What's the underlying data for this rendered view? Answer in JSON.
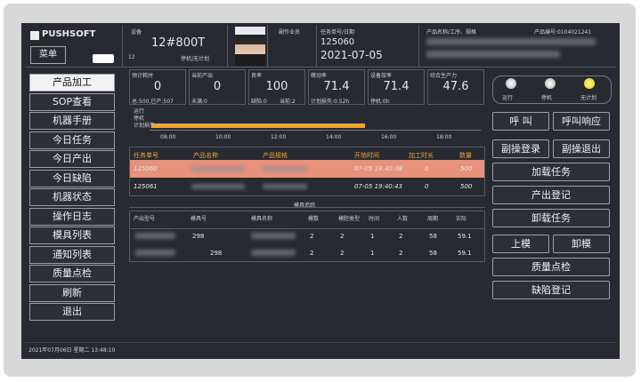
{
  "header": {
    "logo": "PUSHSOFT",
    "menu": "菜单",
    "device_label": "设备",
    "device": "12#800T",
    "device_no": "12",
    "device_status": "停机|无计划",
    "assistant_label": "副作业员",
    "task_label": "任务单号/日期",
    "task_no": "125060",
    "task_date": "2021-07-05",
    "product_label": "产品名称/工序、规格",
    "product_code_label": "产品编号:0104021241"
  },
  "menu": [
    "产品加工",
    "SOP查看",
    "机器手册",
    "今日任务",
    "今日产出",
    "今日缺陷",
    "机器状态",
    "操作日志",
    "模具列表",
    "通知列表",
    "质量点检",
    "刷新",
    "退出"
  ],
  "stats": [
    {
      "label": "预计耗时",
      "value": 0,
      "notes": [
        "总:500,已产:507"
      ]
    },
    {
      "label": "当前产出",
      "value": 0,
      "notes": [
        "未满:0"
      ]
    },
    {
      "label": "良率",
      "value": 100,
      "notes": [
        "缺陷:0",
        "当前:2"
      ]
    },
    {
      "label": "稼动率",
      "value": 71.4,
      "notes": [
        "计划损失:0.52h"
      ]
    },
    {
      "label": "设备效率",
      "value": 71.4,
      "notes": [
        "停机:0h"
      ]
    },
    {
      "label": "综合生产力",
      "value": 47.6,
      "notes": []
    }
  ],
  "timeline": {
    "legend": [
      "运行",
      "停机",
      "计划损失"
    ],
    "ticks": [
      "08:00",
      "10:00",
      "12:00",
      "14:00",
      "16:00",
      "18:00"
    ]
  },
  "tasks": {
    "headers": [
      "任务单号",
      "产品名称",
      "产品规格",
      "开始时间",
      "加工时长",
      "数量"
    ],
    "rows": [
      {
        "no": "125060",
        "start": "07-05 19:40:38",
        "duration": 0,
        "qty": 500
      },
      {
        "no": "125061",
        "start": "07-05 19:40:43",
        "duration": 0,
        "qty": 500
      }
    ]
  },
  "molds": {
    "title": "模具追踪",
    "headers": [
      "产出型号",
      "模具号",
      "模具名称",
      "模数",
      "模腔类型",
      "时间",
      "人数",
      "周期",
      "实际"
    ],
    "rows": [
      {
        "mold_no": 298,
        "cells": [
          2,
          2,
          1,
          2,
          58,
          59.1
        ]
      },
      {
        "mold_no": 298,
        "cells": [
          2,
          2,
          1,
          2,
          58,
          59.1
        ]
      }
    ]
  },
  "status_lights": [
    "运行",
    "停机",
    "无计划"
  ],
  "actions": [
    [
      "呼 叫",
      "呼叫响应"
    ],
    [
      "副操登录",
      "副操退出"
    ],
    [
      "加载任务"
    ],
    [
      "产出登记"
    ],
    [
      "卸载任务"
    ],
    [
      "上模",
      "卸模"
    ],
    [
      "质量点检"
    ],
    [
      "缺陷登记"
    ]
  ],
  "footer": {
    "datetime": "2021年07月06日 星期二 13:48:10"
  }
}
